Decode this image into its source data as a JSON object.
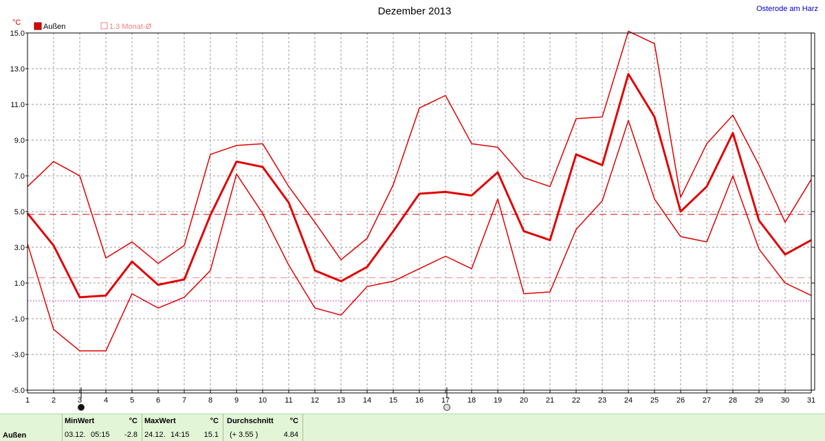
{
  "chart_data": {
    "type": "line",
    "title": "Dezember 2013",
    "location": "Osterode am Harz",
    "ylabel": "°C",
    "ylim": [
      -5.0,
      15.0
    ],
    "yticks": [
      "-5.0",
      "-3.0",
      "-1.0",
      "1.0",
      "3.0",
      "5.0",
      "7.0",
      "9.0",
      "11.0",
      "13.0",
      "15.0"
    ],
    "x": [
      1,
      2,
      3,
      4,
      5,
      6,
      7,
      8,
      9,
      10,
      11,
      12,
      13,
      14,
      15,
      16,
      17,
      18,
      19,
      20,
      21,
      22,
      23,
      24,
      25,
      26,
      27,
      28,
      29,
      30,
      31
    ],
    "xlim": [
      1,
      31
    ],
    "grid": true,
    "legend": [
      {
        "label": "Außen",
        "color": "#e00000",
        "style": "filled"
      },
      {
        "label": "1.3 Monat-Ø",
        "color": "#f08080",
        "style": "outline"
      }
    ],
    "series": [
      {
        "name": "Außen",
        "role": "max",
        "color": "#e00000",
        "values": [
          6.4,
          7.8,
          7.0,
          2.4,
          3.3,
          2.1,
          3.1,
          8.2,
          8.7,
          8.8,
          6.4,
          4.4,
          2.3,
          3.5,
          6.5,
          10.8,
          11.5,
          8.8,
          8.6,
          6.9,
          6.4,
          10.2,
          10.3,
          15.1,
          14.4,
          5.8,
          8.8,
          10.4,
          7.6,
          4.4,
          6.8
        ]
      },
      {
        "name": "Außen",
        "role": "avg",
        "color": "#e00000",
        "values": [
          4.9,
          3.1,
          0.2,
          0.3,
          2.2,
          0.9,
          1.2,
          4.8,
          7.8,
          7.5,
          5.5,
          1.7,
          1.1,
          1.9,
          3.9,
          6.0,
          6.1,
          5.9,
          7.2,
          3.9,
          3.4,
          8.2,
          7.6,
          12.7,
          10.3,
          5.0,
          6.4,
          9.4,
          4.5,
          2.6,
          3.4
        ]
      },
      {
        "name": "Außen",
        "role": "min",
        "color": "#e00000",
        "values": [
          3.2,
          -1.6,
          -2.8,
          -2.8,
          0.4,
          -0.4,
          0.2,
          1.7,
          7.1,
          4.9,
          2.0,
          -0.4,
          -0.8,
          0.8,
          1.1,
          1.8,
          2.5,
          1.8,
          5.7,
          0.4,
          0.5,
          4.0,
          5.6,
          10.1,
          5.7,
          3.6,
          3.3,
          7.0,
          2.9,
          1.0,
          0.3
        ]
      }
    ],
    "reference_lines": [
      {
        "value": 4.84,
        "color": "#e00000",
        "style": "dashed"
      },
      {
        "value": 1.3,
        "color": "#f08080",
        "style": "dashed"
      },
      {
        "value": 0.0,
        "color": "#cc00cc",
        "style": "dotted"
      }
    ],
    "markers": [
      {
        "x": 3,
        "kind": "new-moon"
      },
      {
        "x": 17,
        "kind": "full-moon"
      }
    ]
  },
  "stats": {
    "series_label": "Außen",
    "min": {
      "title": "MinWert",
      "unit": "°C",
      "date": "03.12.",
      "time": "05:15",
      "value": "-2.8"
    },
    "max": {
      "title": "MaxWert",
      "unit": "°C",
      "date": "24.12.",
      "time": "14:15",
      "value": "15.1"
    },
    "avg": {
      "title": "Durchschnitt",
      "unit": "°C",
      "delta": "(+ 3.55 )",
      "value": "4.84"
    }
  }
}
